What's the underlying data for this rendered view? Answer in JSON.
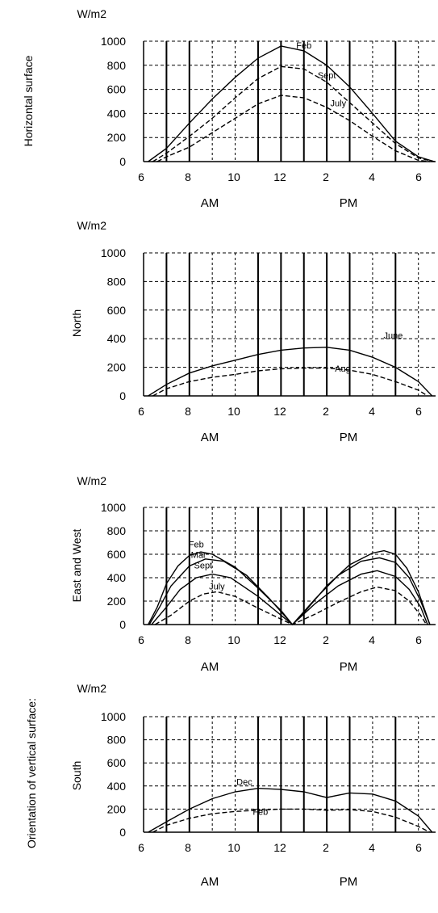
{
  "side_title": "Orientation of vertical surface:",
  "chart_data": [
    {
      "type": "line",
      "panel_label": "Horizontal surface",
      "ylabel": "W/m2",
      "ylim": [
        0,
        1000
      ],
      "yticks": [
        "0",
        "200",
        "400",
        "600",
        "800",
        "1000"
      ],
      "xlim": [
        6,
        18.75
      ],
      "xticks": [
        "6",
        "8",
        "10",
        "12",
        "2",
        "4",
        "6"
      ],
      "period_labels": [
        "AM",
        "PM"
      ],
      "grid": true,
      "series": [
        {
          "name": "Feb",
          "style": "solid",
          "label_at": [
            13.0,
            940
          ],
          "points": [
            [
              6.2,
              0
            ],
            [
              7,
              110
            ],
            [
              8,
              320
            ],
            [
              9,
              520
            ],
            [
              10,
              700
            ],
            [
              11,
              860
            ],
            [
              12,
              960
            ],
            [
              13,
              920
            ],
            [
              14,
              800
            ],
            [
              15,
              620
            ],
            [
              16,
              400
            ],
            [
              17,
              170
            ],
            [
              18,
              40
            ],
            [
              18.7,
              0
            ]
          ]
        },
        {
          "name": "Sept",
          "style": "dashed",
          "label_at": [
            14.0,
            690
          ],
          "points": [
            [
              6.4,
              0
            ],
            [
              7,
              70
            ],
            [
              8,
              210
            ],
            [
              9,
              360
            ],
            [
              10,
              530
            ],
            [
              11,
              690
            ],
            [
              12,
              790
            ],
            [
              13,
              770
            ],
            [
              14,
              660
            ],
            [
              15,
              490
            ],
            [
              16,
              320
            ],
            [
              17,
              150
            ],
            [
              18,
              30
            ],
            [
              18.7,
              0
            ]
          ]
        },
        {
          "name": "July",
          "style": "dashed",
          "label_at": [
            14.5,
            460
          ],
          "points": [
            [
              6.6,
              0
            ],
            [
              7,
              40
            ],
            [
              8,
              120
            ],
            [
              9,
              240
            ],
            [
              10,
              360
            ],
            [
              11,
              480
            ],
            [
              12,
              550
            ],
            [
              13,
              530
            ],
            [
              14,
              450
            ],
            [
              15,
              340
            ],
            [
              16,
              210
            ],
            [
              17,
              90
            ],
            [
              18,
              10
            ],
            [
              18.5,
              0
            ]
          ]
        }
      ]
    },
    {
      "type": "line",
      "panel_label": "North",
      "ylabel": "W/m2",
      "ylim": [
        0,
        1000
      ],
      "yticks": [
        "0",
        "200",
        "400",
        "600",
        "800",
        "1000"
      ],
      "xlim": [
        6,
        18.75
      ],
      "xticks": [
        "6",
        "8",
        "10",
        "12",
        "2",
        "4",
        "6"
      ],
      "period_labels": [
        "AM",
        "PM"
      ],
      "grid": true,
      "series": [
        {
          "name": "June",
          "style": "solid",
          "label_at": [
            16.9,
            400
          ],
          "points": [
            [
              6.2,
              0
            ],
            [
              7,
              80
            ],
            [
              8,
              160
            ],
            [
              9,
              210
            ],
            [
              10,
              250
            ],
            [
              11,
              290
            ],
            [
              12,
              320
            ],
            [
              13,
              335
            ],
            [
              14,
              340
            ],
            [
              15,
              320
            ],
            [
              16,
              270
            ],
            [
              17,
              200
            ],
            [
              18,
              100
            ],
            [
              18.6,
              0
            ]
          ]
        },
        {
          "name": "Aug",
          "style": "dashed",
          "label_at": [
            14.7,
            170
          ],
          "points": [
            [
              6.4,
              0
            ],
            [
              7,
              50
            ],
            [
              8,
              100
            ],
            [
              9,
              130
            ],
            [
              10,
              150
            ],
            [
              11,
              175
            ],
            [
              12,
              190
            ],
            [
              13,
              195
            ],
            [
              14,
              195
            ],
            [
              15,
              180
            ],
            [
              16,
              150
            ],
            [
              17,
              100
            ],
            [
              18,
              40
            ],
            [
              18.4,
              0
            ]
          ]
        }
      ]
    },
    {
      "type": "line",
      "panel_label": "East and West",
      "ylabel": "W/m2",
      "ylim": [
        0,
        1000
      ],
      "yticks": [
        "0",
        "200",
        "400",
        "600",
        "800",
        "1000"
      ],
      "xlim": [
        6,
        18.75
      ],
      "xticks": [
        "6",
        "8",
        "10",
        "12",
        "2",
        "4",
        "6"
      ],
      "period_labels": [
        "AM",
        "PM"
      ],
      "grid": true,
      "series": [
        {
          "name": "Feb",
          "style": "solid",
          "label_at": [
            8.3,
            660
          ],
          "points": [
            [
              6.2,
              0
            ],
            [
              6.6,
              150
            ],
            [
              7,
              350
            ],
            [
              7.5,
              500
            ],
            [
              8,
              590
            ],
            [
              8.5,
              620
            ],
            [
              9,
              600
            ],
            [
              10,
              490
            ],
            [
              11,
              310
            ],
            [
              12,
              120
            ],
            [
              12.5,
              0
            ],
            [
              13,
              100
            ],
            [
              14,
              330
            ],
            [
              15,
              510
            ],
            [
              16,
              610
            ],
            [
              16.5,
              630
            ],
            [
              17,
              600
            ],
            [
              17.5,
              480
            ],
            [
              18,
              280
            ],
            [
              18.5,
              0
            ]
          ]
        },
        {
          "name": "Mar",
          "style": "solid",
          "label_at": [
            8.4,
            570
          ],
          "points": [
            [
              6.25,
              0
            ],
            [
              6.7,
              150
            ],
            [
              7.2,
              330
            ],
            [
              8,
              500
            ],
            [
              8.7,
              560
            ],
            [
              9.5,
              540
            ],
            [
              10.5,
              420
            ],
            [
              11.5,
              220
            ],
            [
              12.5,
              0
            ],
            [
              13.5,
              220
            ],
            [
              14.5,
              420
            ],
            [
              15.5,
              540
            ],
            [
              16.3,
              570
            ],
            [
              17,
              530
            ],
            [
              17.6,
              400
            ],
            [
              18.1,
              200
            ],
            [
              18.5,
              0
            ]
          ]
        },
        {
          "name": "Sept",
          "style": "solid",
          "label_at": [
            8.6,
            480
          ],
          "points": [
            [
              6.35,
              0
            ],
            [
              7,
              150
            ],
            [
              7.6,
              300
            ],
            [
              8.3,
              400
            ],
            [
              9,
              430
            ],
            [
              9.8,
              400
            ],
            [
              11,
              240
            ],
            [
              12.5,
              0
            ],
            [
              13.5,
              180
            ],
            [
              14.5,
              330
            ],
            [
              15.5,
              430
            ],
            [
              16.2,
              460
            ],
            [
              17,
              410
            ],
            [
              17.6,
              300
            ],
            [
              18.1,
              150
            ],
            [
              18.4,
              0
            ]
          ]
        },
        {
          "name": "July",
          "style": "dashed",
          "label_at": [
            9.2,
            300
          ],
          "points": [
            [
              6.5,
              0
            ],
            [
              7.2,
              80
            ],
            [
              8,
              200
            ],
            [
              8.6,
              260
            ],
            [
              9.2,
              280
            ],
            [
              10,
              240
            ],
            [
              11,
              140
            ],
            [
              12.5,
              0
            ],
            [
              13.5,
              90
            ],
            [
              14.5,
              190
            ],
            [
              15.5,
              280
            ],
            [
              16.2,
              320
            ],
            [
              17,
              290
            ],
            [
              17.6,
              200
            ],
            [
              18.1,
              80
            ],
            [
              18.35,
              0
            ]
          ]
        }
      ]
    },
    {
      "type": "line",
      "panel_label": "South",
      "ylabel": "W/m2",
      "ylim": [
        0,
        1000
      ],
      "yticks": [
        "0",
        "200",
        "400",
        "600",
        "800",
        "1000"
      ],
      "xlim": [
        6,
        18.75
      ],
      "xticks": [
        "6",
        "8",
        "10",
        "12",
        "2",
        "4",
        "6"
      ],
      "period_labels": [
        "AM",
        "PM"
      ],
      "grid": true,
      "series": [
        {
          "name": "Dec",
          "style": "solid",
          "label_at": [
            10.4,
            410
          ],
          "points": [
            [
              6.2,
              0
            ],
            [
              7,
              90
            ],
            [
              8,
              200
            ],
            [
              9,
              290
            ],
            [
              10,
              350
            ],
            [
              11,
              380
            ],
            [
              12,
              370
            ],
            [
              13,
              350
            ],
            [
              14,
              300
            ],
            [
              14.5,
              320
            ],
            [
              15,
              340
            ],
            [
              16,
              330
            ],
            [
              17,
              270
            ],
            [
              18,
              140
            ],
            [
              18.6,
              0
            ]
          ]
        },
        {
          "name": "Feb",
          "style": "dashed",
          "label_at": [
            11.1,
            150
          ],
          "points": [
            [
              6.4,
              0
            ],
            [
              7,
              60
            ],
            [
              8,
              120
            ],
            [
              9,
              160
            ],
            [
              10,
              180
            ],
            [
              11,
              190
            ],
            [
              12,
              200
            ],
            [
              13,
              200
            ],
            [
              14,
              190
            ],
            [
              15,
              195
            ],
            [
              16,
              180
            ],
            [
              17,
              130
            ],
            [
              18,
              50
            ],
            [
              18.5,
              0
            ]
          ]
        }
      ]
    }
  ]
}
